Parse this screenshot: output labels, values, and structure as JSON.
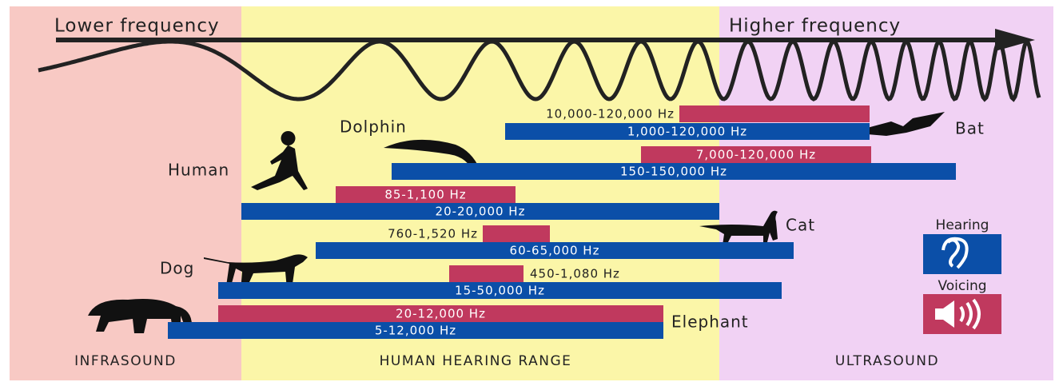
{
  "header": {
    "left": "Lower frequency",
    "right": "Higher frequency"
  },
  "animals": [
    {
      "name": "Bat",
      "voicing": "10,000-120,000 Hz",
      "hearing": "1,000-120,000 Hz"
    },
    {
      "name": "Dolphin",
      "voicing": "7,000-120,000 Hz",
      "hearing": "150-150,000 Hz"
    },
    {
      "name": "Human",
      "voicing": "85-1,100 Hz",
      "hearing": "20-20,000 Hz"
    },
    {
      "name": "Cat",
      "voicing": "760-1,520 Hz",
      "hearing": "60-65,000 Hz"
    },
    {
      "name": "Dog",
      "voicing": "450-1,080 Hz",
      "hearing": "15-50,000 Hz"
    },
    {
      "name": "Elephant",
      "voicing": "20-12,000 Hz",
      "hearing": "5-12,000 Hz"
    }
  ],
  "legend": {
    "hearing": "Hearing",
    "voicing": "Voicing"
  },
  "zones": [
    "INFRASOUND",
    "HUMAN HEARING RANGE",
    "ULTRASOUND"
  ]
}
